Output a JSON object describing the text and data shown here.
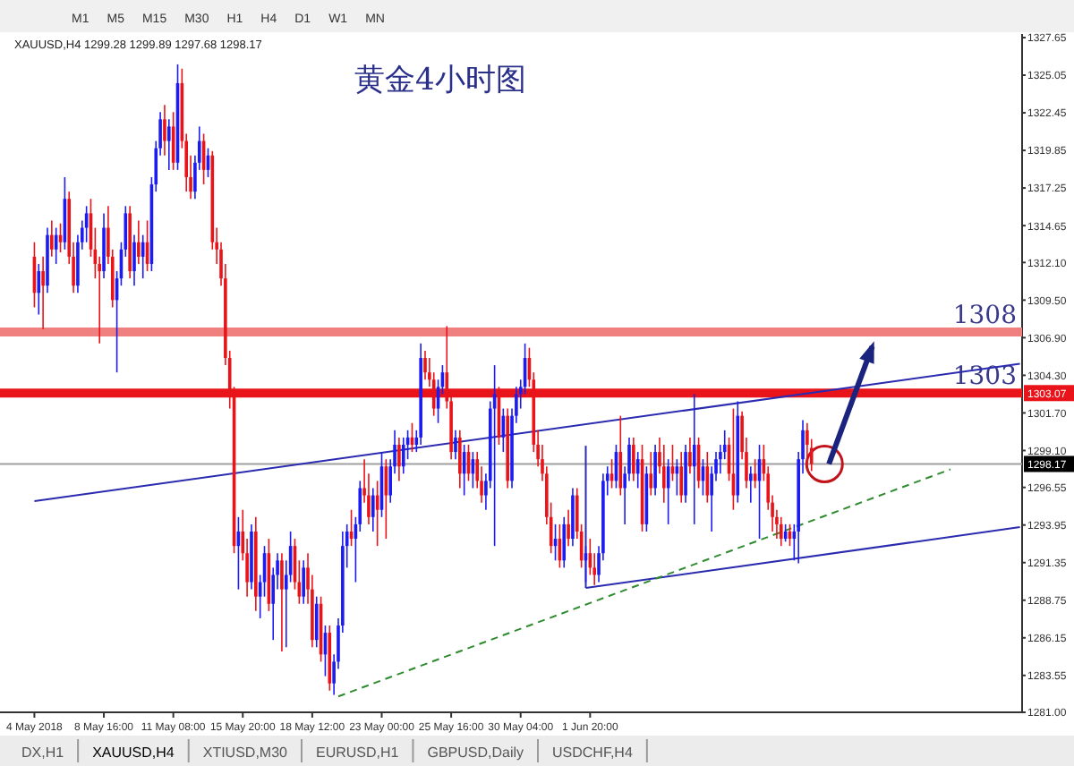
{
  "chart_data": {
    "type": "candlestick",
    "title": "黄金4小时图",
    "subtitle": "XAUUSD,H4 1299.28 1299.89 1297.68 1298.17",
    "categories": [
      "4 May 2018",
      null,
      null,
      null,
      null,
      null,
      null,
      null,
      null,
      null,
      null,
      null,
      null,
      null,
      null,
      null,
      "8 May 16:00",
      null,
      null,
      null,
      null,
      null,
      null,
      null,
      null,
      null,
      null,
      null,
      null,
      null,
      null,
      null,
      "11 May 08:00",
      null,
      null,
      null,
      null,
      null,
      null,
      null,
      null,
      null,
      null,
      null,
      null,
      null,
      null,
      null,
      "15 May 20:00",
      null,
      null,
      null,
      null,
      null,
      null,
      null,
      null,
      null,
      null,
      null,
      null,
      null,
      null,
      null,
      "18 May 12:00",
      null,
      null,
      null,
      null,
      null,
      null,
      null,
      null,
      null,
      null,
      null,
      null,
      null,
      null,
      null,
      "23 May 00:00",
      null,
      null,
      null,
      null,
      null,
      null,
      null,
      null,
      null,
      null,
      null,
      null,
      null,
      null,
      null,
      "25 May 16:00",
      null,
      null,
      null,
      null,
      null,
      null,
      null,
      null,
      null,
      null,
      null,
      null,
      null,
      null,
      null,
      "30 May 04:00",
      null,
      null,
      null,
      null,
      null,
      null,
      null,
      null,
      null,
      null,
      null,
      null,
      null,
      null,
      null,
      "1 Jun 20:00",
      null,
      null,
      null,
      null,
      null,
      null,
      null,
      null,
      null,
      null,
      null,
      null,
      null,
      null,
      null,
      null,
      null,
      null,
      null,
      null,
      null,
      null,
      null,
      null,
      null,
      null,
      null,
      null,
      null,
      null,
      null,
      null,
      null,
      null,
      null,
      null,
      null,
      null,
      null,
      null,
      null,
      null,
      null,
      null,
      null,
      null,
      null,
      null,
      null,
      null,
      null,
      null,
      null,
      null,
      null,
      null,
      null,
      null,
      null,
      null,
      null,
      null,
      null,
      null,
      null,
      null,
      null,
      null,
      null,
      null,
      null,
      null,
      null,
      null,
      null,
      null,
      null,
      null,
      null,
      null,
      null,
      null,
      null,
      null,
      null,
      null,
      null,
      null,
      null,
      null,
      null,
      null,
      null,
      null,
      null,
      null,
      null,
      null,
      null
    ],
    "ohlc": [
      [
        1312.5,
        1313.5,
        1309.0,
        1310.0
      ],
      [
        1310.0,
        1312.0,
        1308.5,
        1311.5
      ],
      [
        1311.5,
        1312.5,
        1307.5,
        1310.5
      ],
      [
        1310.5,
        1314.5,
        1310.0,
        1314.0
      ],
      [
        1314.0,
        1315.0,
        1312.5,
        1313.0
      ],
      [
        1313.0,
        1314.5,
        1312.0,
        1314.0
      ],
      [
        1314.0,
        1314.8,
        1312.8,
        1313.5
      ],
      [
        1313.5,
        1318.0,
        1313.0,
        1316.5
      ],
      [
        1316.5,
        1317.0,
        1312.0,
        1312.5
      ],
      [
        1312.5,
        1313.5,
        1310.0,
        1310.5
      ],
      [
        1310.5,
        1314.0,
        1310.0,
        1313.5
      ],
      [
        1313.5,
        1315.0,
        1313.0,
        1314.5
      ],
      [
        1314.5,
        1316.0,
        1313.5,
        1315.5
      ],
      [
        1315.5,
        1316.5,
        1312.5,
        1313.0
      ],
      [
        1313.0,
        1314.5,
        1311.0,
        1312.0
      ],
      [
        1312.0,
        1312.5,
        1306.5,
        1311.5
      ],
      [
        1311.5,
        1315.5,
        1311.0,
        1314.5
      ],
      [
        1314.5,
        1316.0,
        1312.0,
        1312.5
      ],
      [
        1312.5,
        1313.0,
        1309.0,
        1309.5
      ],
      [
        1309.5,
        1311.5,
        1304.5,
        1311.0
      ],
      [
        1311.0,
        1313.5,
        1310.5,
        1313.0
      ],
      [
        1313.0,
        1316.0,
        1312.5,
        1315.5
      ],
      [
        1315.5,
        1316.0,
        1311.0,
        1311.5
      ],
      [
        1311.5,
        1314.0,
        1310.5,
        1313.5
      ],
      [
        1313.5,
        1315.0,
        1312.0,
        1312.5
      ],
      [
        1312.5,
        1314.0,
        1311.0,
        1313.5
      ],
      [
        1313.5,
        1315.0,
        1311.5,
        1312.0
      ],
      [
        1312.0,
        1318.0,
        1311.5,
        1317.5
      ],
      [
        1317.5,
        1320.5,
        1317.0,
        1320.0
      ],
      [
        1320.0,
        1322.5,
        1319.5,
        1322.0
      ],
      [
        1322.0,
        1323.0,
        1319.5,
        1320.5
      ],
      [
        1320.5,
        1322.0,
        1318.5,
        1321.5
      ],
      [
        1321.5,
        1322.5,
        1318.5,
        1319.0
      ],
      [
        1319.0,
        1325.8,
        1318.5,
        1324.5
      ],
      [
        1324.5,
        1325.5,
        1320.0,
        1320.5
      ],
      [
        1320.5,
        1321.0,
        1317.0,
        1318.0
      ],
      [
        1318.0,
        1319.5,
        1316.5,
        1317.0
      ],
      [
        1317.0,
        1319.5,
        1316.5,
        1319.0
      ],
      [
        1319.0,
        1321.5,
        1318.5,
        1320.5
      ],
      [
        1320.5,
        1321.0,
        1317.5,
        1318.5
      ],
      [
        1318.5,
        1320.0,
        1318.0,
        1319.5
      ],
      [
        1319.5,
        1319.8,
        1313.0,
        1313.5
      ],
      [
        1313.5,
        1314.5,
        1312.0,
        1313.0
      ],
      [
        1313.0,
        1313.5,
        1310.5,
        1311.0
      ],
      [
        1311.0,
        1312.0,
        1305.0,
        1305.5
      ],
      [
        1305.5,
        1306.0,
        1302.0,
        1303.0
      ],
      [
        1303.0,
        1303.5,
        1292.0,
        1292.5
      ],
      [
        1292.5,
        1294.5,
        1289.5,
        1293.5
      ],
      [
        1293.5,
        1295.0,
        1291.5,
        1292.0
      ],
      [
        1292.0,
        1293.0,
        1289.0,
        1290.0
      ],
      [
        1290.0,
        1294.0,
        1289.5,
        1293.5
      ],
      [
        1293.5,
        1294.5,
        1288.0,
        1289.0
      ],
      [
        1289.0,
        1290.5,
        1287.5,
        1290.0
      ],
      [
        1290.0,
        1292.5,
        1289.0,
        1292.0
      ],
      [
        1292.0,
        1293.0,
        1288.0,
        1288.5
      ],
      [
        1288.5,
        1291.0,
        1286.0,
        1290.5
      ],
      [
        1290.5,
        1292.0,
        1289.5,
        1291.5
      ],
      [
        1291.5,
        1292.0,
        1285.2,
        1289.5
      ],
      [
        1289.5,
        1291.5,
        1285.5,
        1290.5
      ],
      [
        1290.5,
        1293.5,
        1290.0,
        1292.5
      ],
      [
        1292.5,
        1293.0,
        1289.5,
        1290.0
      ],
      [
        1290.0,
        1291.5,
        1288.5,
        1289.0
      ],
      [
        1289.0,
        1291.5,
        1288.5,
        1291.0
      ],
      [
        1291.0,
        1292.0,
        1288.5,
        1289.5
      ],
      [
        1289.5,
        1290.5,
        1285.5,
        1286.0
      ],
      [
        1286.0,
        1289.0,
        1285.5,
        1288.5
      ],
      [
        1288.5,
        1289.0,
        1284.5,
        1285.0
      ],
      [
        1285.0,
        1287.0,
        1283.5,
        1286.5
      ],
      [
        1286.5,
        1287.0,
        1282.5,
        1283.0
      ],
      [
        1283.0,
        1285.0,
        1282.2,
        1284.5
      ],
      [
        1284.5,
        1287.5,
        1284.0,
        1287.0
      ],
      [
        1287.0,
        1293.5,
        1286.5,
        1292.5
      ],
      [
        1292.5,
        1294.0,
        1291.0,
        1293.5
      ],
      [
        1293.5,
        1295.0,
        1292.5,
        1293.0
      ],
      [
        1293.0,
        1294.5,
        1290.0,
        1294.0
      ],
      [
        1294.0,
        1297.0,
        1293.5,
        1296.5
      ],
      [
        1296.5,
        1298.5,
        1295.5,
        1296.0
      ],
      [
        1296.0,
        1297.5,
        1294.0,
        1294.5
      ],
      [
        1294.5,
        1296.5,
        1293.5,
        1296.0
      ],
      [
        1296.0,
        1297.0,
        1292.5,
        1295.0
      ],
      [
        1295.0,
        1299.0,
        1294.5,
        1298.0
      ],
      [
        1298.0,
        1298.5,
        1293.0,
        1296.0
      ],
      [
        1296.0,
        1298.5,
        1295.5,
        1298.0
      ],
      [
        1298.0,
        1300.5,
        1297.5,
        1299.5
      ],
      [
        1299.5,
        1300.0,
        1297.0,
        1298.0
      ],
      [
        1298.0,
        1300.0,
        1297.5,
        1299.5
      ],
      [
        1299.5,
        1300.5,
        1298.5,
        1300.0
      ],
      [
        1300.0,
        1301.0,
        1299.0,
        1299.5
      ],
      [
        1299.5,
        1300.5,
        1299.0,
        1300.0
      ],
      [
        1300.0,
        1306.5,
        1299.5,
        1305.5
      ],
      [
        1305.5,
        1306.0,
        1304.0,
        1304.5
      ],
      [
        1304.5,
        1305.5,
        1303.5,
        1304.0
      ],
      [
        1304.0,
        1304.5,
        1301.5,
        1302.0
      ],
      [
        1302.0,
        1304.0,
        1301.0,
        1303.5
      ],
      [
        1303.5,
        1305.0,
        1303.0,
        1304.5
      ],
      [
        1304.5,
        1307.7,
        1302.0,
        1302.5
      ],
      [
        1302.5,
        1303.0,
        1298.5,
        1299.0
      ],
      [
        1299.0,
        1300.5,
        1298.5,
        1300.0
      ],
      [
        1300.0,
        1300.5,
        1296.5,
        1297.5
      ],
      [
        1297.5,
        1299.5,
        1296.0,
        1299.0
      ],
      [
        1299.0,
        1299.5,
        1297.0,
        1297.5
      ],
      [
        1297.5,
        1299.0,
        1296.5,
        1298.5
      ],
      [
        1298.5,
        1299.0,
        1296.5,
        1297.0
      ],
      [
        1297.0,
        1298.0,
        1295.5,
        1296.0
      ],
      [
        1296.0,
        1297.5,
        1295.0,
        1297.0
      ],
      [
        1297.0,
        1302.5,
        1296.5,
        1302.0
      ],
      [
        1302.0,
        1305.0,
        1292.5,
        1303.0
      ],
      [
        1303.0,
        1303.5,
        1299.5,
        1300.0
      ],
      [
        1300.0,
        1302.0,
        1299.0,
        1301.5
      ],
      [
        1301.5,
        1302.0,
        1296.5,
        1297.0
      ],
      [
        1297.0,
        1302.0,
        1296.5,
        1301.5
      ],
      [
        1301.5,
        1303.5,
        1301.0,
        1303.0
      ],
      [
        1303.0,
        1304.0,
        1302.0,
        1303.5
      ],
      [
        1303.5,
        1306.5,
        1303.0,
        1305.5
      ],
      [
        1305.5,
        1306.2,
        1303.5,
        1304.0
      ],
      [
        1304.0,
        1304.5,
        1299.0,
        1299.5
      ],
      [
        1299.5,
        1300.5,
        1298.0,
        1298.5
      ],
      [
        1298.5,
        1299.5,
        1297.0,
        1297.5
      ],
      [
        1297.5,
        1298.0,
        1294.0,
        1294.5
      ],
      [
        1294.5,
        1295.5,
        1292.0,
        1292.5
      ],
      [
        1292.5,
        1294.0,
        1291.5,
        1293.0
      ],
      [
        1293.0,
        1294.0,
        1291.0,
        1291.5
      ],
      [
        1291.5,
        1294.5,
        1291.0,
        1294.0
      ],
      [
        1294.0,
        1295.0,
        1292.5,
        1293.0
      ],
      [
        1293.0,
        1296.5,
        1292.5,
        1296.0
      ],
      [
        1296.0,
        1296.5,
        1293.0,
        1293.5
      ],
      [
        1293.5,
        1294.0,
        1291.0,
        1291.5
      ],
      [
        1291.5,
        1292.5,
        1290.0,
        1292.0
      ],
      [
        1292.0,
        1293.0,
        1290.5,
        1291.0
      ],
      [
        1291.0,
        1292.0,
        1289.8,
        1290.5
      ],
      [
        1290.5,
        1292.5,
        1290.0,
        1292.0
      ],
      [
        1292.0,
        1297.5,
        1291.5,
        1297.0
      ],
      [
        1297.0,
        1298.0,
        1296.0,
        1297.5
      ],
      [
        1297.5,
        1298.5,
        1296.5,
        1297.0
      ],
      [
        1297.0,
        1299.5,
        1296.5,
        1299.0
      ],
      [
        1299.0,
        1301.5,
        1296.0,
        1296.5
      ],
      [
        1296.5,
        1298.0,
        1294.0,
        1297.5
      ],
      [
        1297.5,
        1300.0,
        1297.0,
        1299.5
      ],
      [
        1299.5,
        1300.0,
        1297.0,
        1297.5
      ],
      [
        1297.5,
        1299.0,
        1296.5,
        1298.5
      ],
      [
        1298.5,
        1299.5,
        1293.5,
        1294.0
      ],
      [
        1294.0,
        1298.0,
        1293.5,
        1297.5
      ],
      [
        1297.5,
        1299.0,
        1296.0,
        1296.5
      ],
      [
        1296.5,
        1299.5,
        1296.0,
        1299.0
      ],
      [
        1299.0,
        1300.0,
        1297.5,
        1298.0
      ],
      [
        1298.0,
        1299.5,
        1295.5,
        1296.5
      ],
      [
        1296.5,
        1298.5,
        1294.0,
        1298.0
      ],
      [
        1298.0,
        1299.5,
        1297.0,
        1297.5
      ],
      [
        1297.5,
        1298.5,
        1296.0,
        1298.0
      ],
      [
        1298.0,
        1299.0,
        1295.5,
        1296.0
      ],
      [
        1296.0,
        1299.5,
        1295.5,
        1299.0
      ],
      [
        1299.0,
        1300.0,
        1297.5,
        1298.0
      ],
      [
        1298.0,
        1303.0,
        1294.0,
        1299.5
      ],
      [
        1299.5,
        1300.0,
        1296.5,
        1297.0
      ],
      [
        1297.0,
        1298.5,
        1296.0,
        1298.0
      ],
      [
        1298.0,
        1299.0,
        1295.5,
        1296.0
      ],
      [
        1296.0,
        1298.0,
        1293.5,
        1297.5
      ],
      [
        1297.5,
        1299.0,
        1297.0,
        1298.5
      ],
      [
        1298.5,
        1299.5,
        1297.5,
        1299.0
      ],
      [
        1299.0,
        1300.5,
        1298.5,
        1299.5
      ],
      [
        1299.5,
        1300.0,
        1297.0,
        1297.5
      ],
      [
        1297.5,
        1302.0,
        1295.0,
        1296.0
      ],
      [
        1296.0,
        1302.5,
        1295.5,
        1301.5
      ],
      [
        1301.5,
        1301.8,
        1298.5,
        1299.0
      ],
      [
        1299.0,
        1300.0,
        1296.5,
        1297.0
      ],
      [
        1297.0,
        1298.0,
        1295.5,
        1297.5
      ],
      [
        1297.5,
        1298.5,
        1296.5,
        1297.0
      ],
      [
        1297.0,
        1299.5,
        1293.0,
        1298.5
      ],
      [
        1298.5,
        1299.5,
        1297.0,
        1297.5
      ],
      [
        1297.5,
        1298.0,
        1295.0,
        1295.5
      ],
      [
        1295.5,
        1296.0,
        1293.5,
        1294.5
      ],
      [
        1294.5,
        1295.0,
        1293.0,
        1294.0
      ],
      [
        1294.0,
        1294.5,
        1292.5,
        1293.0
      ],
      [
        1293.0,
        1294.0,
        1292.8,
        1293.5
      ],
      [
        1293.5,
        1294.0,
        1292.5,
        1293.0
      ],
      [
        1293.0,
        1294.0,
        1291.5,
        1293.5
      ],
      [
        1293.5,
        1299.0,
        1291.3,
        1298.5
      ],
      [
        1298.5,
        1301.2,
        1297.5,
        1300.5
      ],
      [
        1300.5,
        1301.0,
        1298.0,
        1299.5
      ],
      [
        1299.28,
        1299.89,
        1297.68,
        1298.17
      ],
      null,
      null,
      null,
      null,
      null,
      null,
      null,
      null,
      null,
      null,
      null,
      null,
      null,
      null,
      null,
      null,
      null,
      null,
      null,
      null,
      null,
      null,
      null,
      null,
      null,
      null,
      null,
      null,
      null,
      null,
      null,
      null,
      null,
      null,
      null,
      null,
      null,
      null,
      null,
      null,
      null,
      null,
      null,
      null,
      null,
      null,
      null,
      null
    ],
    "colors": [
      "#e8141a",
      "#1c1cf0",
      "#e8141a",
      "#1c1cf0",
      "#e8141a",
      "#1c1cf0",
      "#e8141a",
      "#1c1cf0",
      "#e8141a",
      "#e8141a",
      "#1c1cf0",
      "#1c1cf0",
      "#1c1cf0",
      "#e8141a",
      "#e8141a",
      "#e8141a",
      "#1c1cf0",
      "#e8141a",
      "#e8141a",
      "#1c1cf0",
      "#1c1cf0",
      "#1c1cf0",
      "#e8141a",
      "#1c1cf0",
      "#e8141a",
      "#1c1cf0",
      "#e8141a",
      "#1c1cf0",
      "#1c1cf0",
      "#1c1cf0",
      "#e8141a",
      "#1c1cf0",
      "#e8141a",
      "#1c1cf0",
      "#e8141a",
      "#e8141a",
      "#e8141a",
      "#1c1cf0",
      "#1c1cf0",
      "#e8141a",
      "#1c1cf0",
      "#e8141a",
      "#e8141a",
      "#e8141a",
      "#e8141a",
      "#e8141a",
      "#e8141a",
      "#1c1cf0",
      "#e8141a",
      "#e8141a",
      "#1c1cf0",
      "#e8141a",
      "#1c1cf0",
      "#1c1cf0",
      "#e8141a",
      "#1c1cf0",
      "#1c1cf0",
      "#e8141a",
      "#1c1cf0",
      "#1c1cf0",
      "#e8141a",
      "#e8141a",
      "#1c1cf0",
      "#e8141a",
      "#e8141a",
      "#1c1cf0",
      "#e8141a",
      "#1c1cf0",
      "#e8141a",
      "#1c1cf0",
      "#1c1cf0",
      "#1c1cf0",
      "#1c1cf0",
      "#e8141a",
      "#1c1cf0",
      "#1c1cf0",
      "#e8141a",
      "#e8141a",
      "#1c1cf0",
      "#e8141a",
      "#1c1cf0",
      "#e8141a",
      "#1c1cf0",
      "#1c1cf0",
      "#e8141a",
      "#1c1cf0",
      "#1c1cf0",
      "#e8141a",
      "#1c1cf0",
      "#1c1cf0",
      "#e8141a",
      "#e8141a",
      "#e8141a",
      "#1c1cf0",
      "#1c1cf0",
      "#e8141a",
      "#e8141a",
      "#1c1cf0",
      "#e8141a",
      "#1c1cf0",
      "#e8141a",
      "#1c1cf0",
      "#e8141a",
      "#e8141a",
      "#1c1cf0",
      "#1c1cf0",
      "#1c1cf0",
      "#e8141a",
      "#1c1cf0",
      "#e8141a",
      "#1c1cf0",
      "#1c1cf0",
      "#1c1cf0",
      "#1c1cf0",
      "#e8141a",
      "#e8141a",
      "#e8141a",
      "#e8141a",
      "#e8141a",
      "#e8141a",
      "#1c1cf0",
      "#e8141a",
      "#1c1cf0",
      "#e8141a",
      "#1c1cf0",
      "#e8141a",
      "#e8141a",
      "#1c1cf0",
      "#e8141a",
      "#e8141a",
      "#1c1cf0",
      "#1c1cf0",
      "#1c1cf0",
      "#e8141a",
      "#1c1cf0",
      "#e8141a",
      "#1c1cf0",
      "#1c1cf0",
      "#e8141a",
      "#1c1cf0",
      "#e8141a",
      "#1c1cf0",
      "#e8141a",
      "#1c1cf0",
      "#e8141a",
      "#e8141a",
      "#1c1cf0",
      "#e8141a",
      "#1c1cf0",
      "#e8141a",
      "#1c1cf0",
      "#e8141a",
      "#1c1cf0",
      "#e8141a",
      "#1c1cf0",
      "#e8141a",
      "#1c1cf0",
      "#1c1cf0",
      "#1c1cf0",
      "#1c1cf0",
      "#e8141a",
      "#e8141a",
      "#1c1cf0",
      "#e8141a",
      "#e8141a",
      "#1c1cf0",
      "#e8141a",
      "#1c1cf0",
      "#e8141a",
      "#e8141a",
      "#e8141a",
      "#e8141a",
      "#e8141a",
      "#1c1cf0",
      "#e8141a",
      "#1c1cf0",
      "#1c1cf0",
      "#1c1cf0",
      "#e8141a",
      "#e8141a",
      null,
      null,
      null,
      null,
      null,
      null,
      null,
      null,
      null,
      null,
      null,
      null,
      null,
      null,
      null,
      null,
      null,
      null,
      null,
      null,
      null,
      null,
      null,
      null,
      null,
      null,
      null,
      null,
      null,
      null,
      null,
      null,
      null,
      null,
      null,
      null,
      null,
      null,
      null,
      null,
      null,
      null,
      null,
      null,
      null,
      null,
      null,
      null
    ],
    "series": [
      {
        "type": "line",
        "color": "#2b2bb0",
        "values": [
          1295.6,
          null,
          null,
          null,
          null,
          null,
          null,
          null,
          null,
          null,
          null,
          null,
          null,
          null,
          null,
          null,
          null,
          null,
          null,
          null,
          null,
          null,
          null,
          null,
          null,
          null,
          null,
          null,
          null,
          null,
          null,
          null,
          null,
          null,
          null,
          null,
          null,
          null,
          null,
          null,
          null,
          null,
          null,
          null,
          null,
          null,
          null,
          null,
          null,
          null,
          null,
          null,
          null,
          null,
          null,
          null,
          null,
          null,
          null,
          null,
          null,
          null,
          null,
          null,
          null,
          null,
          null,
          null,
          null,
          null,
          null,
          null,
          null,
          null,
          null,
          null,
          null,
          null,
          null,
          null,
          null,
          null,
          null,
          null,
          null,
          null,
          null,
          null,
          null,
          null,
          null,
          null,
          null,
          null,
          null,
          null,
          null,
          null,
          null,
          null,
          null,
          null,
          null,
          null,
          null,
          null,
          null,
          null,
          null,
          null,
          null,
          null,
          null,
          null,
          null,
          null,
          null,
          null,
          null,
          null,
          null,
          null,
          null,
          null,
          null,
          null,
          null,
          null,
          null,
          null,
          null,
          null,
          null,
          null,
          null,
          null,
          null,
          null,
          null,
          null,
          null,
          null,
          null,
          null,
          null,
          null,
          null,
          null,
          null,
          null,
          null,
          null,
          null,
          null,
          null,
          null,
          null,
          null,
          null,
          null,
          null,
          null,
          null,
          null,
          null,
          null,
          null,
          null,
          null,
          null,
          null,
          null,
          null,
          null,
          null,
          null,
          null,
          null,
          null,
          null,
          null,
          null,
          null,
          null,
          null,
          null,
          null,
          null,
          null,
          null,
          null,
          null,
          null,
          null,
          null,
          null,
          null,
          null,
          null,
          null,
          null,
          null,
          null,
          null,
          null,
          null,
          null,
          null,
          null,
          null,
          null,
          null,
          null,
          null,
          null,
          null,
          null,
          null,
          null,
          null,
          null,
          null,
          null,
          null,
          null,
          null,
          null,
          1305.1
        ]
      },
      {
        "type": "line",
        "color": "#2b2bb0",
        "values": [
          null,
          null,
          null,
          null,
          null,
          null,
          null,
          null,
          null,
          null,
          null,
          null,
          null,
          null,
          null,
          null,
          null,
          null,
          null,
          null,
          null,
          null,
          null,
          null,
          null,
          null,
          null,
          null,
          null,
          null,
          null,
          null,
          null,
          null,
          null,
          null,
          null,
          null,
          null,
          null,
          null,
          null,
          null,
          null,
          null,
          null,
          null,
          null,
          null,
          null,
          null,
          null,
          null,
          null,
          null,
          null,
          null,
          null,
          null,
          null,
          null,
          null,
          null,
          null,
          null,
          null,
          null,
          null,
          null,
          null,
          null,
          null,
          null,
          null,
          null,
          null,
          null,
          null,
          null,
          null,
          null,
          null,
          null,
          null,
          null,
          null,
          null,
          null,
          null,
          null,
          null,
          null,
          null,
          null,
          null,
          null,
          null,
          null,
          null,
          null,
          null,
          null,
          null,
          null,
          null,
          null,
          null,
          null,
          null,
          null,
          null,
          null,
          null,
          null,
          null,
          null,
          null,
          null,
          null,
          null,
          null,
          null,
          null,
          null,
          null,
          null,
          null,
          1289.6,
          null,
          null,
          null,
          null,
          null,
          null,
          null,
          null,
          null,
          null,
          null,
          null,
          null,
          null,
          null,
          null,
          null,
          null,
          null,
          null,
          null,
          null,
          null,
          null,
          null,
          null,
          null,
          null,
          null,
          null,
          null,
          null,
          null,
          null,
          null,
          null,
          null,
          null,
          null,
          null,
          null,
          null,
          null,
          null,
          null,
          null,
          null,
          null,
          null,
          null,
          null,
          null,
          null,
          null,
          null,
          null,
          null,
          null,
          null,
          null,
          null,
          null,
          null,
          null,
          null,
          null,
          null,
          null,
          null,
          null,
          null,
          null,
          null,
          null,
          null,
          null,
          null,
          null,
          null,
          null,
          null,
          null,
          null,
          null,
          null,
          null,
          null,
          null,
          null,
          null,
          null,
          null,
          null,
          null,
          null,
          null,
          null,
          null,
          null,
          1293.8
        ]
      },
      {
        "type": "line",
        "color": "#2e8b2e",
        "line_style": "dashed",
        "values": [
          null,
          null,
          null,
          null,
          null,
          null,
          null,
          null,
          null,
          null,
          null,
          null,
          null,
          null,
          null,
          null,
          null,
          null,
          null,
          null,
          null,
          null,
          null,
          null,
          null,
          null,
          null,
          null,
          null,
          null,
          null,
          null,
          null,
          null,
          null,
          null,
          null,
          null,
          null,
          null,
          null,
          null,
          null,
          null,
          null,
          null,
          null,
          null,
          null,
          null,
          null,
          null,
          null,
          null,
          null,
          null,
          null,
          null,
          null,
          null,
          null,
          null,
          null,
          null,
          null,
          null,
          null,
          null,
          null,
          null,
          1282.1,
          null,
          null,
          null,
          null,
          null,
          null,
          null,
          null,
          null,
          null,
          null,
          null,
          null,
          null,
          null,
          null,
          null,
          null,
          null,
          null,
          null,
          null,
          null,
          null,
          null,
          null,
          null,
          null,
          null,
          null,
          null,
          null,
          null,
          null,
          null,
          null,
          null,
          null,
          null,
          null,
          null,
          null,
          null,
          null,
          null,
          null,
          null,
          null,
          null,
          null,
          null,
          null,
          null,
          null,
          null,
          null,
          null,
          null,
          null,
          null,
          null,
          null,
          null,
          null,
          null,
          null,
          null,
          null,
          null,
          null,
          null,
          null,
          null,
          null,
          null,
          null,
          null,
          null,
          null,
          null,
          null,
          null,
          null,
          null,
          null,
          null,
          null,
          null,
          null,
          null,
          null,
          null,
          null,
          null,
          null,
          null,
          null,
          null,
          null,
          null,
          null,
          null,
          null,
          null,
          null,
          null,
          null,
          null,
          null,
          null,
          null,
          null,
          null,
          null,
          null,
          null,
          null,
          null,
          null,
          null,
          null,
          null,
          null,
          null,
          null,
          null,
          null,
          null,
          null,
          null,
          null,
          null,
          null,
          null,
          null,
          null,
          null,
          null,
          null,
          null,
          1297.8,
          null,
          null,
          null,
          null,
          null,
          null,
          null,
          null,
          null,
          null,
          null,
          null,
          null,
          null,
          null,
          null
        ]
      }
    ],
    "ref_lines": [
      {
        "axis": "y",
        "value": 1307.3,
        "color": "#f08080"
      },
      {
        "axis": "y",
        "value": 1303.07,
        "label": "1303.07",
        "color": "#e8141a"
      },
      {
        "axis": "y",
        "value": 1298.17,
        "label": "1298.17",
        "color": "#a0a0a0",
        "line_style": "solid"
      }
    ],
    "annotations": [
      "M1 M5 M15 M30 H1 H4 D1 W1 MN",
      "DX,H1",
      "XAUUSD,H4",
      "XTIUSD,M30",
      "EURUSD,H1",
      "GBPUSD,Daily",
      "USDCHF,H4",
      {
        "text": "1308",
        "y": 1307.3
      },
      {
        "text": "1303",
        "y": 1303.07
      }
    ],
    "ylim": [
      1281.0,
      1327.65
    ],
    "yticks": [
      {
        "value": 1327.65,
        "label": "1327.65"
      },
      {
        "value": 1325.05,
        "label": "1325.05"
      },
      {
        "value": 1322.45,
        "label": "1322.45"
      },
      {
        "value": 1319.85,
        "label": "1319.85"
      },
      {
        "value": 1317.25,
        "label": "1317.25"
      },
      {
        "value": 1314.65,
        "label": "1314.65"
      },
      {
        "value": 1312.1,
        "label": "1312.10"
      },
      {
        "value": 1309.5,
        "label": "1309.50"
      },
      {
        "value": 1306.9,
        "label": "1306.90"
      },
      {
        "value": 1304.3,
        "label": "1304.30"
      },
      {
        "value": 1301.7,
        "label": "1301.70"
      },
      {
        "value": 1299.1,
        "label": "1299.10"
      },
      {
        "value": 1296.55,
        "label": "1296.55"
      },
      {
        "value": 1293.95,
        "label": "1293.95"
      },
      {
        "value": 1291.35,
        "label": "1291.35"
      },
      {
        "value": 1288.75,
        "label": "1288.75"
      },
      {
        "value": 1286.15,
        "label": "1286.15"
      },
      {
        "value": 1283.55,
        "label": "1283.55"
      },
      {
        "value": 1281,
        "label": "1281.00"
      }
    ]
  }
}
